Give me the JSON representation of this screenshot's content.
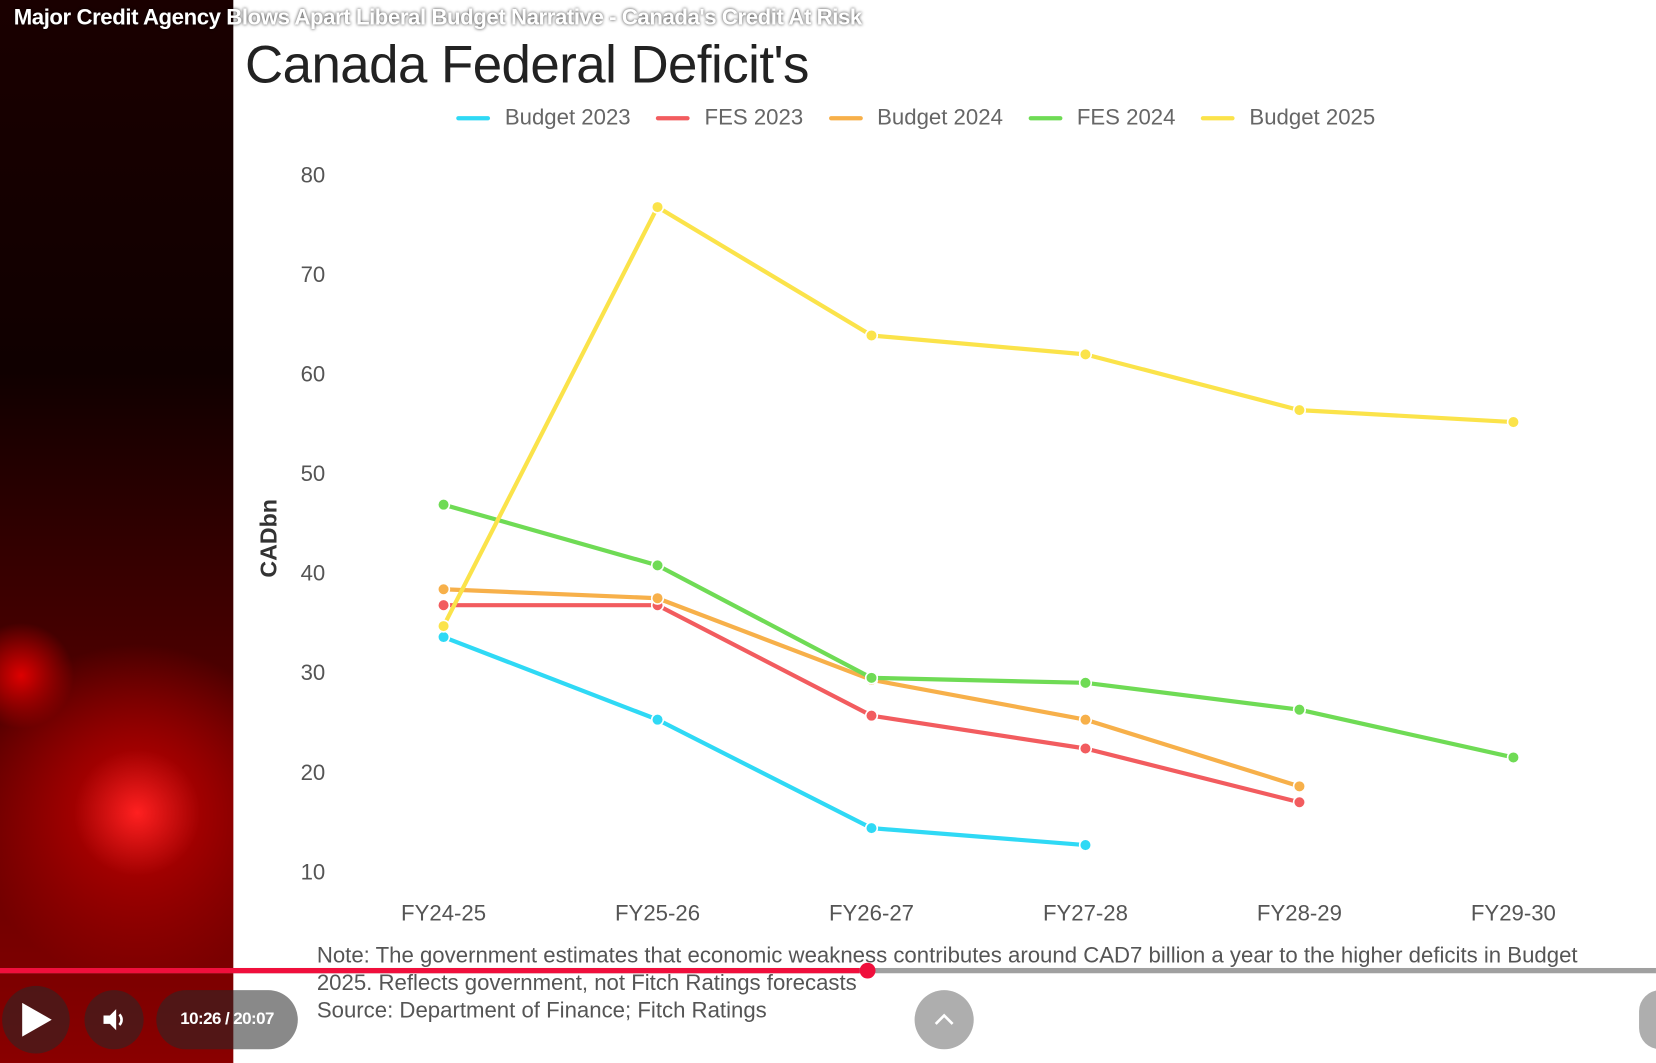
{
  "video": {
    "title": "Major Credit Agency Blows Apart Liberal Budget Narrative - Canada's Credit At Risk",
    "current_time": "10:26",
    "duration": "20:07",
    "time_display": "10:26 / 20:07",
    "progress_fraction": 0.519,
    "accent_color": "#f00f3c"
  },
  "controls": {
    "play_icon": "play-icon",
    "volume_icon": "volume-icon",
    "expand_icon": "chevron-up-icon"
  },
  "chart_data": {
    "type": "line",
    "title": "Canada Federal Deficit's",
    "ylabel": "CADbn",
    "xlabel": "",
    "categories": [
      "FY24-25",
      "FY25-26",
      "FY26-27",
      "FY27-28",
      "FY28-29",
      "FY29-30"
    ],
    "yticks": [
      10,
      20,
      30,
      40,
      50,
      60,
      70,
      80
    ],
    "ylim": [
      10,
      80
    ],
    "grid": false,
    "legend_position": "top",
    "series": [
      {
        "name": "Budget 2023",
        "color": "#2fd9f5",
        "values": [
          33.6,
          25.3,
          14.4,
          12.7,
          null,
          null
        ]
      },
      {
        "name": "FES 2023",
        "color": "#f25c5f",
        "values": [
          36.8,
          36.8,
          25.7,
          22.4,
          17.0,
          null
        ]
      },
      {
        "name": "Budget 2024",
        "color": "#f7b04a",
        "values": [
          38.4,
          37.5,
          29.3,
          25.3,
          18.6,
          null
        ]
      },
      {
        "name": "FES 2024",
        "color": "#6fdb55",
        "values": [
          46.9,
          40.8,
          29.5,
          29.0,
          26.3,
          21.5
        ]
      },
      {
        "name": "Budget 2025",
        "color": "#fbe34a",
        "values": [
          34.7,
          76.8,
          63.9,
          62.0,
          56.4,
          55.2
        ]
      }
    ],
    "note_line1": "Note: The government estimates that economic weakness contributes around CAD7 billion a year to the higher deficits in Budget",
    "note_line2": "2025. Reflects government, not Fitch Ratings forecasts",
    "source": "Source: Department of Finance; Fitch Ratings"
  }
}
